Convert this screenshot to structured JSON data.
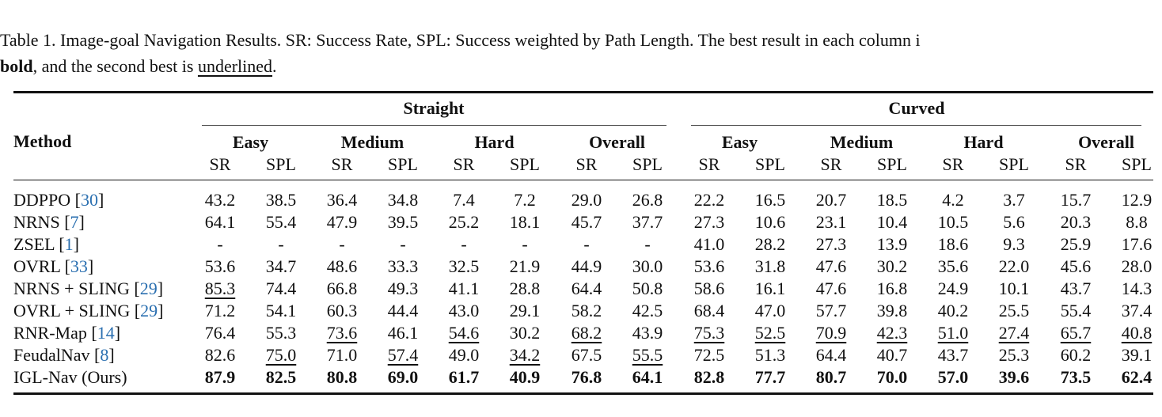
{
  "caption": {
    "line1": "Table 1.  Image-goal Navigation Results.  SR: Success Rate, SPL: Success weighted by Path Length.  The best result in each column i",
    "line2_bold": "bold",
    "line2_mid": ", and the second best is ",
    "line2_ul": "underlined",
    "line2_end": "."
  },
  "table": {
    "method_header": "Method",
    "groups": [
      "Straight",
      "Curved"
    ],
    "levels": [
      "Easy",
      "Medium",
      "Hard",
      "Overall",
      "Easy",
      "Medium",
      "Hard",
      "Overall"
    ],
    "metrics": [
      "SR",
      "SPL",
      "SR",
      "SPL",
      "SR",
      "SPL",
      "SR",
      "SPL",
      "SR",
      "SPL",
      "SR",
      "SPL",
      "SR",
      "SPL",
      "SR",
      "SPL"
    ],
    "rows": [
      {
        "name": "DDPPO ",
        "cite": "30",
        "cells": [
          "43.2",
          "38.5",
          "36.4",
          "34.8",
          "7.4",
          "7.2",
          "29.0",
          "26.8",
          "22.2",
          "16.5",
          "20.7",
          "18.5",
          "4.2",
          "3.7",
          "15.7",
          "12.9"
        ],
        "bold": [],
        "ul": []
      },
      {
        "name": "NRNS ",
        "cite": "7",
        "cells": [
          "64.1",
          "55.4",
          "47.9",
          "39.5",
          "25.2",
          "18.1",
          "45.7",
          "37.7",
          "27.3",
          "10.6",
          "23.1",
          "10.4",
          "10.5",
          "5.6",
          "20.3",
          "8.8"
        ],
        "bold": [],
        "ul": []
      },
      {
        "name": "ZSEL ",
        "cite": "1",
        "cells": [
          "-",
          "-",
          "-",
          "-",
          "-",
          "-",
          "-",
          "-",
          "41.0",
          "28.2",
          "27.3",
          "13.9",
          "18.6",
          "9.3",
          "25.9",
          "17.6"
        ],
        "bold": [],
        "ul": []
      },
      {
        "name": "OVRL ",
        "cite": "33",
        "cells": [
          "53.6",
          "34.7",
          "48.6",
          "33.3",
          "32.5",
          "21.9",
          "44.9",
          "30.0",
          "53.6",
          "31.8",
          "47.6",
          "30.2",
          "35.6",
          "22.0",
          "45.6",
          "28.0"
        ],
        "bold": [],
        "ul": []
      },
      {
        "name": "NRNS + SLING ",
        "cite": "29",
        "cells": [
          "85.3",
          "74.4",
          "66.8",
          "49.3",
          "41.1",
          "28.8",
          "64.4",
          "50.8",
          "58.6",
          "16.1",
          "47.6",
          "16.8",
          "24.9",
          "10.1",
          "43.7",
          "14.3"
        ],
        "bold": [],
        "ul": [
          0
        ]
      },
      {
        "name": "OVRL + SLING ",
        "cite": "29",
        "cells": [
          "71.2",
          "54.1",
          "60.3",
          "44.4",
          "43.0",
          "29.1",
          "58.2",
          "42.5",
          "68.4",
          "47.0",
          "57.7",
          "39.8",
          "40.2",
          "25.5",
          "55.4",
          "37.4"
        ],
        "bold": [],
        "ul": []
      },
      {
        "name": "RNR-Map ",
        "cite": "14",
        "cells": [
          "76.4",
          "55.3",
          "73.6",
          "46.1",
          "54.6",
          "30.2",
          "68.2",
          "43.9",
          "75.3",
          "52.5",
          "70.9",
          "42.3",
          "51.0",
          "27.4",
          "65.7",
          "40.8"
        ],
        "bold": [],
        "ul": [
          2,
          4,
          6,
          8,
          9,
          10,
          11,
          12,
          13,
          14,
          15
        ]
      },
      {
        "name": "FeudalNav ",
        "cite": "8",
        "cells": [
          "82.6",
          "75.0",
          "71.0",
          "57.4",
          "49.0",
          "34.2",
          "67.5",
          "55.5",
          "72.5",
          "51.3",
          "64.4",
          "40.7",
          "43.7",
          "25.3",
          "60.2",
          "39.1"
        ],
        "bold": [],
        "ul": [
          1,
          3,
          5,
          7
        ]
      },
      {
        "name": "IGL-Nav (Ours)",
        "cite": "",
        "cells": [
          "87.9",
          "82.5",
          "80.8",
          "69.0",
          "61.7",
          "40.9",
          "76.8",
          "64.1",
          "82.8",
          "77.7",
          "80.7",
          "70.0",
          "57.0",
          "39.6",
          "73.5",
          "62.4"
        ],
        "bold": [
          0,
          1,
          2,
          3,
          4,
          5,
          6,
          7,
          8,
          9,
          10,
          11,
          12,
          13,
          14,
          15
        ],
        "ul": []
      }
    ]
  }
}
